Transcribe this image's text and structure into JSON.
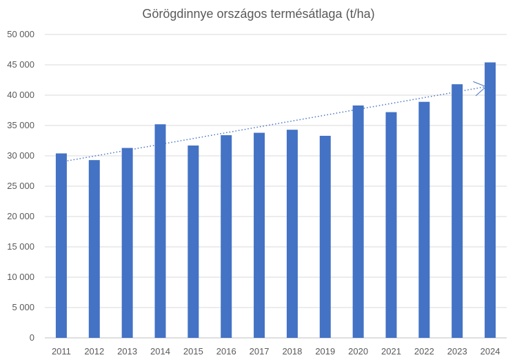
{
  "chart_data": {
    "type": "bar",
    "title": "Görögdinnye országos termésátlaga (t/ha)",
    "xlabel": "",
    "ylabel": "",
    "categories": [
      "2011",
      "2012",
      "2013",
      "2014",
      "2015",
      "2016",
      "2017",
      "2018",
      "2019",
      "2020",
      "2021",
      "2022",
      "2023",
      "2024"
    ],
    "values": [
      30400,
      29300,
      31300,
      35200,
      31700,
      33400,
      33800,
      34300,
      33300,
      38300,
      37200,
      38900,
      41800,
      45400
    ],
    "ylim": [
      0,
      50000
    ],
    "yticks": [
      0,
      5000,
      10000,
      15000,
      20000,
      25000,
      30000,
      35000,
      40000,
      45000,
      50000
    ],
    "ytick_labels": [
      "0",
      "5 000",
      "10 000",
      "15 000",
      "20 000",
      "25 000",
      "30 000",
      "35 000",
      "40 000",
      "45 000",
      "50 000"
    ],
    "trendline": {
      "style": "dotted",
      "start_value": 29000,
      "end_value": 41400,
      "arrow": true
    },
    "grid": true,
    "legend": "none",
    "colors": {
      "bar": "#4472c4",
      "grid": "#d9d9d9",
      "text": "#595959",
      "axis": "#bfbfbf"
    }
  }
}
